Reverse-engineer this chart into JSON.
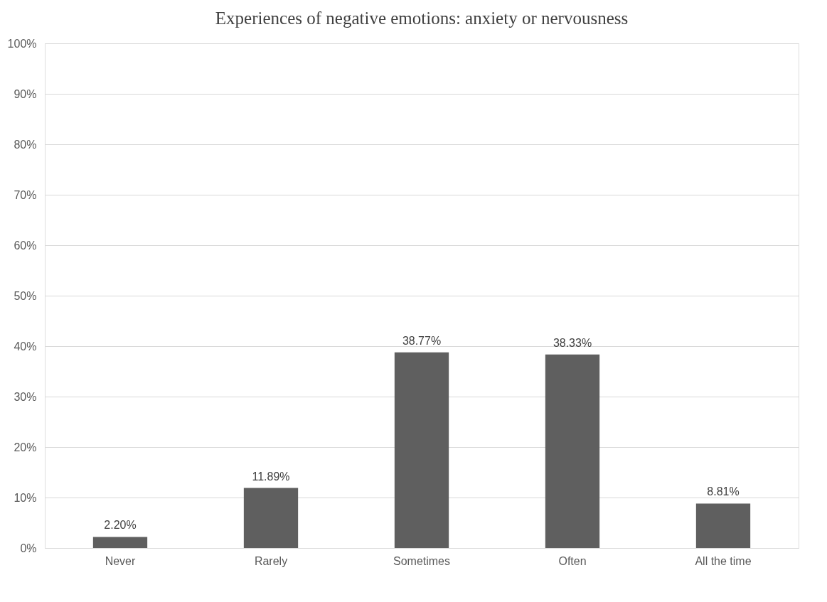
{
  "chart_data": {
    "type": "bar",
    "title": "Experiences of negative emotions: anxiety or nervousness",
    "categories": [
      "Never",
      "Rarely",
      "Sometimes",
      "Often",
      "All the time"
    ],
    "values": [
      2.2,
      11.89,
      38.77,
      38.33,
      8.81
    ],
    "value_labels": [
      "2.20%",
      "11.89%",
      "38.77%",
      "38.33%",
      "8.81%"
    ],
    "color": "#5f5f5f",
    "ylim": [
      0,
      100
    ],
    "yticks": [
      {
        "value": 0,
        "label": "0%"
      },
      {
        "value": 10,
        "label": "10%"
      },
      {
        "value": 20,
        "label": "20%"
      },
      {
        "value": 30,
        "label": "30%"
      },
      {
        "value": 40,
        "label": "40%"
      },
      {
        "value": 50,
        "label": "50%"
      },
      {
        "value": 60,
        "label": "60%"
      },
      {
        "value": 70,
        "label": "70%"
      },
      {
        "value": 80,
        "label": "80%"
      },
      {
        "value": 90,
        "label": "90%"
      },
      {
        "value": 100,
        "label": "100%"
      }
    ],
    "grid": "y"
  }
}
